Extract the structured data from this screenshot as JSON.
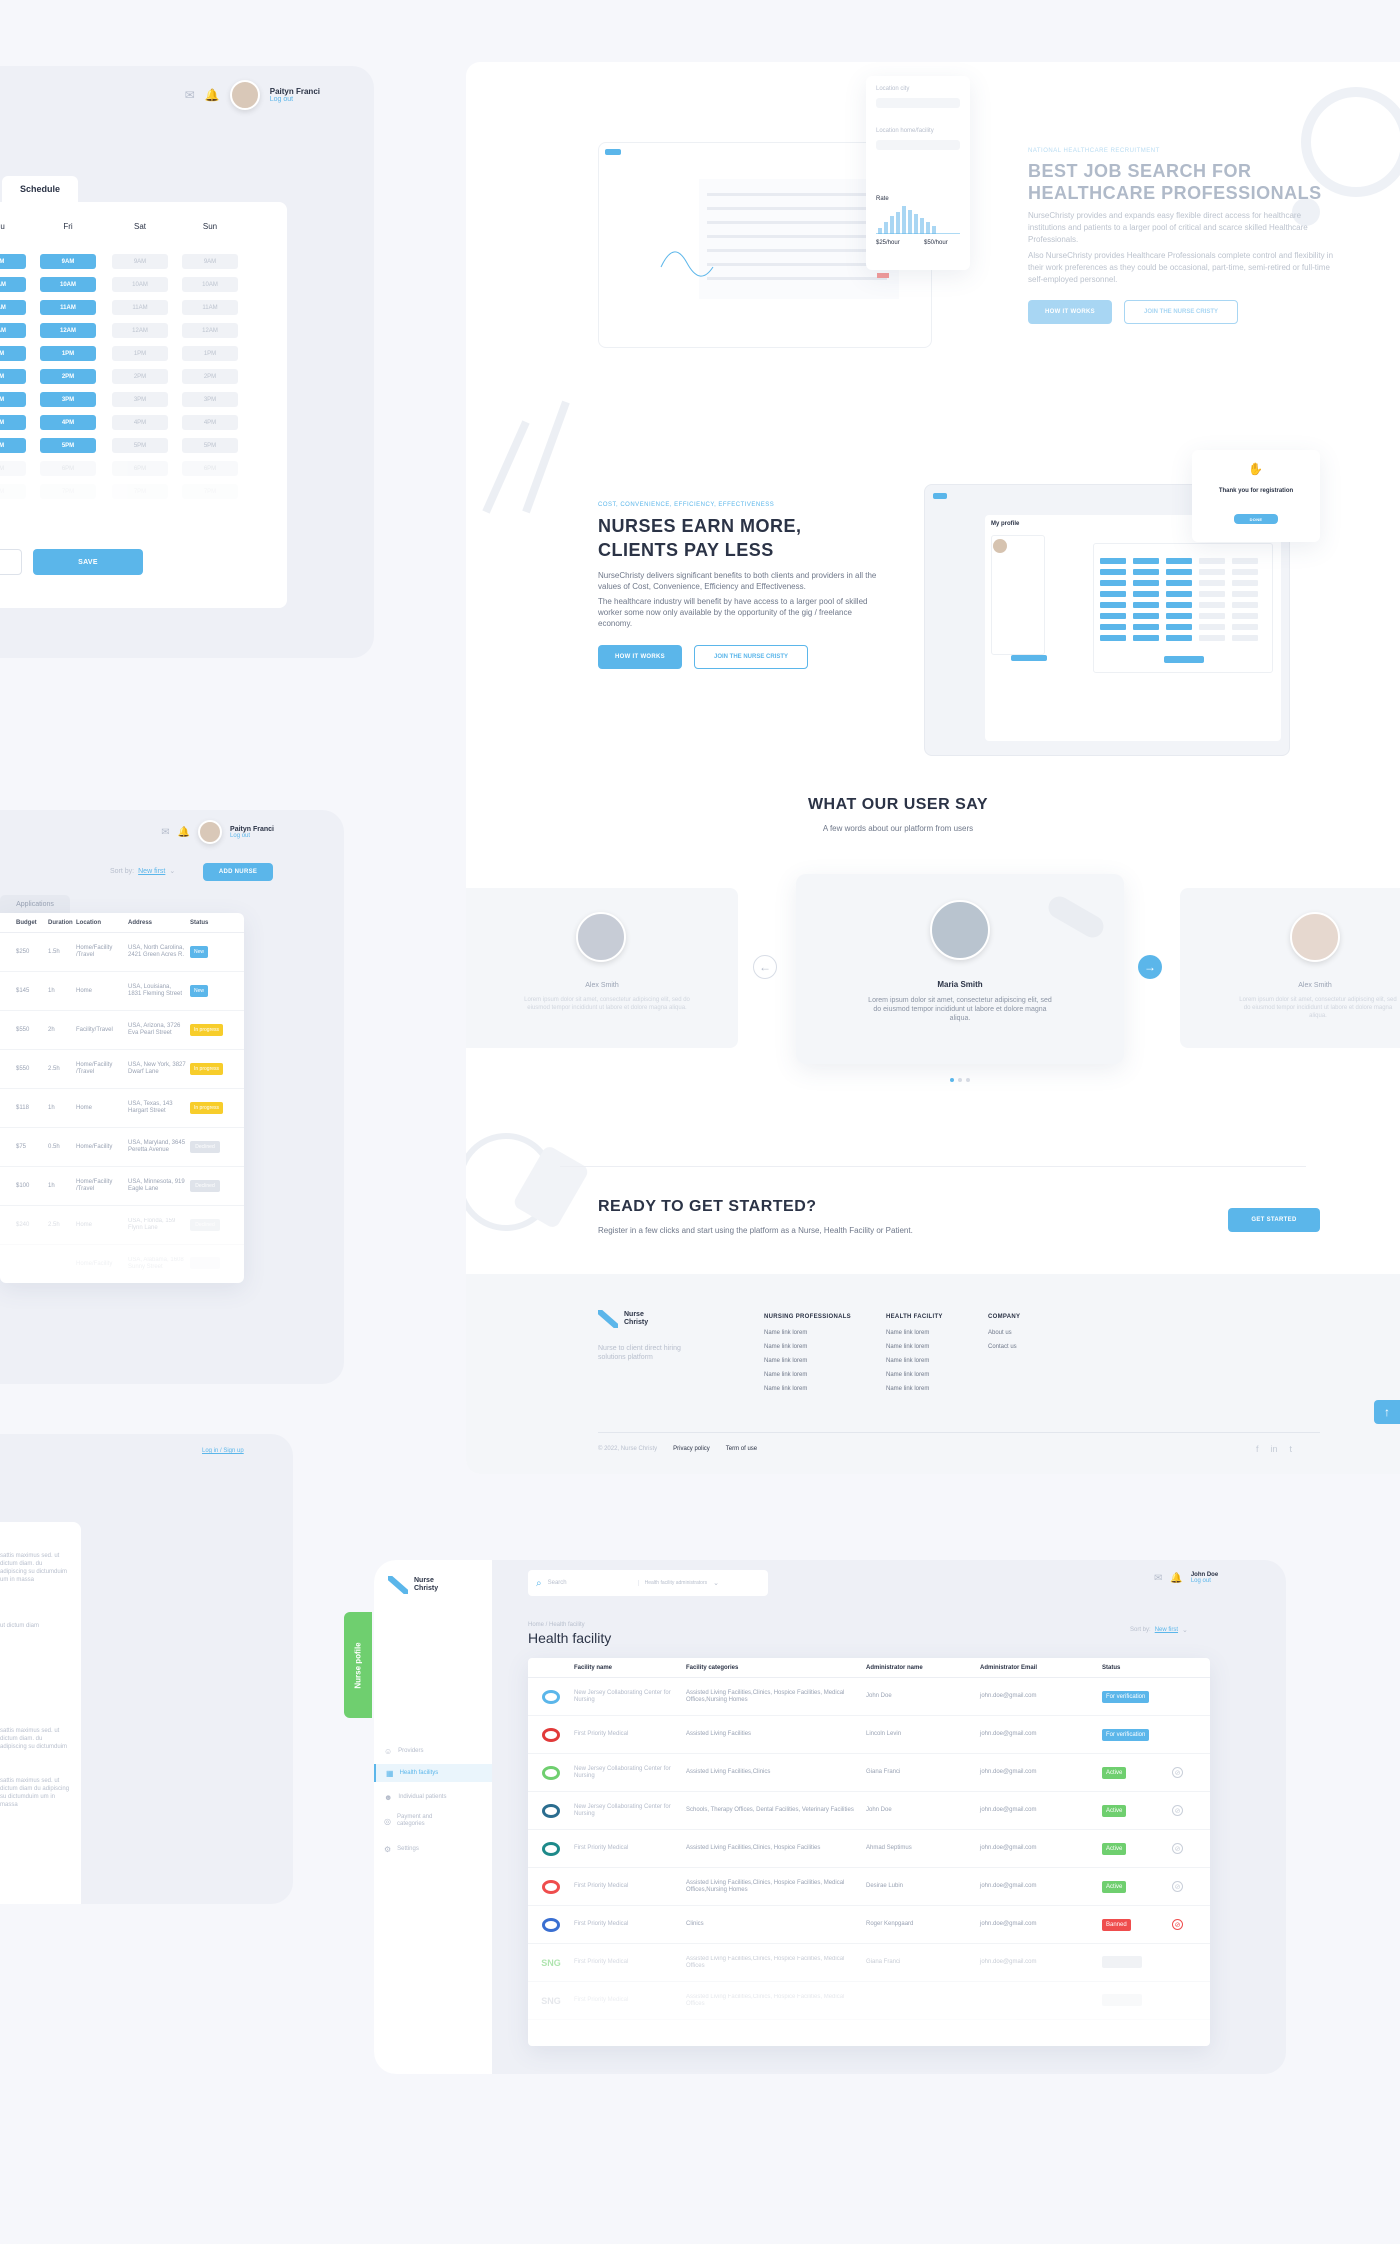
{
  "colors": {
    "accent": "#5bb6ea",
    "green": "#6fcf6f",
    "yellow": "#f7cd2b",
    "red": "#ef4d4d",
    "bg": "#f6f7fb"
  },
  "profile": {
    "name": "Paityn Franci",
    "logout": "Log out"
  },
  "schedule": {
    "tab": "Schedule",
    "days": [
      "Thu",
      "Fri",
      "Sat",
      "Sun"
    ],
    "times": [
      "9AM",
      "10AM",
      "11AM",
      "12AM",
      "1PM",
      "2PM",
      "3PM",
      "4PM",
      "5PM",
      "6PM",
      "7PM"
    ],
    "save": "SAVE"
  },
  "applications": {
    "profile_name": "Paityn Franci",
    "profile_logout": "Log out",
    "sort_label": "Sort by:",
    "sort_value": "New first",
    "add_button": "ADD NURSE",
    "tab": "Applications",
    "columns": [
      "Budget",
      "Duration",
      "Location",
      "Address",
      "Status"
    ],
    "rows": [
      {
        "budget": "$250",
        "duration": "1.5h",
        "location": "Home/Facility /Travel",
        "address": "USA, North Carolina, 2421 Green Acres R.",
        "status": "New"
      },
      {
        "budget": "$145",
        "duration": "1h",
        "location": "Home",
        "address": "USA, Louisiana, 1831 Fleming Street",
        "status": "New"
      },
      {
        "budget": "$550",
        "duration": "2h",
        "location": "Facility/Travel",
        "address": "USA, Arizona, 3726 Eva Pearl Street",
        "status": "In progress"
      },
      {
        "budget": "$550",
        "duration": "2.5h",
        "location": "Home/Facility /Travel",
        "address": "USA, New York, 3827 Dwarf Lane",
        "status": "In progress"
      },
      {
        "budget": "$118",
        "duration": "1h",
        "location": "Home",
        "address": "USA, Texas, 143 Hargart Street",
        "status": "In progress"
      },
      {
        "budget": "$75",
        "duration": "0.5h",
        "location": "Home/Facility",
        "address": "USA, Maryland, 3645 Peretta Avenue",
        "status": "Declined"
      },
      {
        "budget": "$100",
        "duration": "1h",
        "location": "Home/Facility /Travel",
        "address": "USA, Minnesota, 919 Eagle Lane",
        "status": "Declined"
      },
      {
        "budget": "$240",
        "duration": "2.5h",
        "location": "Home",
        "address": "USA, Florida, 159 Flynn Lane",
        "status": "Declined"
      },
      {
        "budget": "",
        "duration": "",
        "location": "Home/Facility",
        "address": "USA, Alabama, 1608 Sunny Street",
        "status": ""
      }
    ]
  },
  "login_panel": {
    "link": "Log in / Sign up",
    "texts": [
      "sattis maximus sed. ut dictum diam. du adipiscing su dictumduim um in massa",
      "ut dictum diam",
      "sattis maximus sed. ut dictum diam. du adipiscing su dictumduim",
      "sattis maximus sed. ut dictum diam du adipiscing su dictumduim um in massa"
    ]
  },
  "hero1": {
    "eyebrow": "NATIONAL HEALTHCARE RECRUITMENT",
    "title": "BEST JOB SEARCH FOR HEALTHCARE PROFESSIONALS",
    "p1": "NurseChristy provides and expands easy flexible direct access for healthcare institutions and patients to a larger pool of critical and scarce skilled Healthcare Professionals.",
    "p2": "Also NurseChristy provides Healthcare Professionals complete control and flexibility in their work preferences as they could be occasional, part-time, semi-retired or full-time self-employed personnel.",
    "btn1": "HOW IT WORKS",
    "btn2": "JOIN THE NURSE CRISTY",
    "mock": {
      "location": "Location city",
      "facility": "Location home/facility",
      "rate": "Rate",
      "rate_min": "$25/hour",
      "rate_max": "$50/hour"
    }
  },
  "hero2": {
    "eyebrow": "COST, CONVENIENCE, EFFICIENCY, EFFECTIVENESS",
    "title": "NURSES EARN MORE, CLIENTS PAY LESS",
    "p1": "NurseChristy delivers significant benefits to both clients and providers in all the values of Cost, Convenience, Efficiency and Effectiveness.",
    "p2": "The healthcare industry will benefit by have access to a larger pool of skilled worker some now only available by the opportunity of the gig / freelance economy.",
    "btn1": "HOW IT WORKS",
    "btn2": "JOIN THE NURSE CRISTY",
    "mock": {
      "title": "My profile",
      "thanks": "Thank you for registration",
      "ok": "DONE"
    }
  },
  "testimonials": {
    "title": "WHAT OUR USER SAY",
    "subtitle": "A few words about our platform from users",
    "items": [
      {
        "name": "Alex Smith",
        "text": "Lorem ipsum dolor sit amet, consectetur adipiscing elit, sed do eiusmod tempor incididunt ut labore et dolore magna aliqua."
      },
      {
        "name": "Maria Smith",
        "text": "Lorem ipsum dolor sit amet, consectetur adipiscing elit, sed do eiusmod tempor incididunt ut labore et dolore magna aliqua."
      },
      {
        "name": "Alex Smith",
        "text": "Lorem ipsum dolor sit amet, consectetur adipiscing elit, sed do eiusmod tempor incididunt ut labore et dolore magna aliqua."
      }
    ]
  },
  "cta": {
    "title": "READY TO GET STARTED?",
    "text": "Register in a few clicks and start using the platform as a  Nurse, Health Facility or Patient.",
    "button": "GET STARTED"
  },
  "footer": {
    "brand": "Nurse Christy",
    "tagline": "Nurse to client direct hiring solutions platform",
    "cols": [
      {
        "title": "NURSING PROFESSIONALS",
        "links": [
          "Name link lorem",
          "Name link lorem",
          "Name link lorem",
          "Name link lorem",
          "Name link lorem"
        ]
      },
      {
        "title": "HEALTH FACILITY",
        "links": [
          "Name link lorem",
          "Name link lorem",
          "Name link lorem",
          "Name link lorem",
          "Name link lorem"
        ]
      },
      {
        "title": "COMPANY",
        "links": [
          "About us",
          "Contact us"
        ]
      }
    ],
    "copyright": "© 2022, Nurse Christy",
    "privacy": "Privacy policy",
    "terms": "Term of use"
  },
  "admin": {
    "brand": "Nurse Christy",
    "side_tab": "Nurse pofile",
    "search_placeholder": "Search",
    "filter": "Health facility administrators",
    "user": "John Doe",
    "logout": "Log out",
    "breadcrumb": "Home / Health facility",
    "title": "Health facility",
    "sort_label": "Sort by:",
    "sort_value": "New first",
    "nav": [
      "Providers",
      "Health facilitys",
      "Individual patients",
      "Payment and categories",
      "Settings"
    ],
    "columns": [
      "Facility name",
      "Facility categories",
      "Administrator name",
      "Administrator Email",
      "Status"
    ],
    "rows": [
      {
        "logo": "logo-1",
        "name": "New Jersey Collaborating Center for Nursing",
        "cat": "Assisted Living Facilities,Clinics, Hospice Facilities, Medical Offices,Nursing Homes",
        "admin": "John Doe",
        "email": "john.doe@gmail.com",
        "status": "For verification"
      },
      {
        "logo": "logo-2",
        "name": "First Priority Medical",
        "cat": "Assisted Living Facilities",
        "admin": "Lincoln Levin",
        "email": "john.doe@gmail.com",
        "status": "For verification"
      },
      {
        "logo": "logo-3",
        "name": "New Jersey Collaborating Center for Nursing",
        "cat": "Assisted Living Facilities,Clinics",
        "admin": "Giana Franci",
        "email": "john.doe@gmail.com",
        "status": "Active"
      },
      {
        "logo": "logo-4",
        "name": "New Jersey Collaborating Center for Nursing",
        "cat": "Schools, Therapy Offices, Dental Facilities, Veterinary Facilities",
        "admin": "John Doe",
        "email": "john.doe@gmail.com",
        "status": "Active"
      },
      {
        "logo": "logo-5",
        "name": "First Priority Medical",
        "cat": "Assisted Living Facilities,Clinics, Hospice Facilities",
        "admin": "Ahmad Septimus",
        "email": "john.doe@gmail.com",
        "status": "Active"
      },
      {
        "logo": "logo-6",
        "name": "First Priority Medical",
        "cat": "Assisted Living Facilities,Clinics, Hospice Facilities, Medical Offices,Nursing Homes",
        "admin": "Desirae Lubin",
        "email": "john.doe@gmail.com",
        "status": "Active"
      },
      {
        "logo": "logo-7",
        "name": "First Priority Medical",
        "cat": "Clinics",
        "admin": "Roger Kenpgaard",
        "email": "john.doe@gmail.com",
        "status": "Banned"
      },
      {
        "logo": "SNG",
        "name": "First Priority Medical",
        "cat": "Assisted Living Facilities,Clinics, Hospice Facilities, Medical Offices",
        "admin": "Giana Franci",
        "email": "john.doe@gmail.com",
        "status": ""
      },
      {
        "logo": "SNG",
        "name": "First Priority Medical",
        "cat": "Assisted Living Facilities,Clinics, Hospice Facilities, Medical Offices",
        "admin": "",
        "email": "",
        "status": ""
      }
    ]
  }
}
